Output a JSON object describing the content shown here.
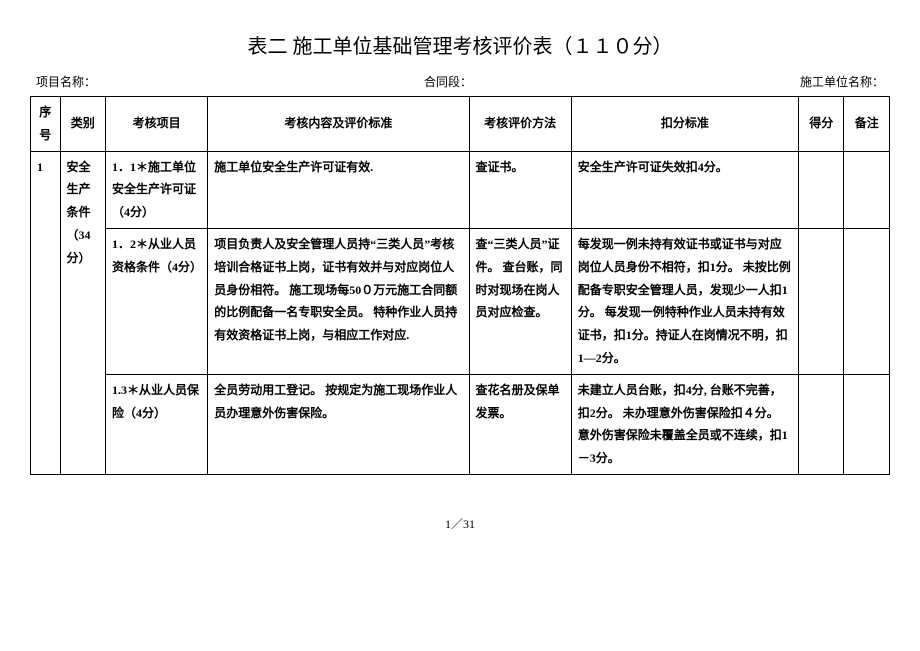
{
  "title": "表二 施工单位基础管理考核评价表（１１０分）",
  "meta": {
    "project_label": "项目名称：",
    "section_label": "合同段：",
    "unit_label": "施工单位名称："
  },
  "columns": {
    "seq": "序号",
    "cat": "类别",
    "item": "考核项目",
    "std": "考核内容及评价标准",
    "method": "考核评价方法",
    "deduct": "扣分标准",
    "score": "得分",
    "note": "备注"
  },
  "rows": [
    {
      "seq": "1",
      "cat": "安全生产条件（34分）",
      "item": "1．1＊施工单位安全生产许可证（4分）",
      "std": "施工单位安全生产许可证有效.",
      "method": "查证书。",
      "deduct": "安全生产许可证失效扣4分。",
      "score": "",
      "note": ""
    },
    {
      "item": "1．2＊从业人员资格条件（4分）",
      "std": "项目负责人及安全管理人员持“三类人员”考核培训合格证书上岗，证书有效并与对应岗位人员身份相符。\n施工现场每50０万元施工合同额的比例配备一名专职安全员。\n特种作业人员持有效资格证书上岗，与相应工作对应.",
      "method": "查“三类人员”证件。\n查台账，同时对现场在岗人员对应检查。",
      "deduct": "每发现一例未持有效证书或证书与对应岗位人员身份不相符，扣1分。\n未按比例配备专职安全管理人员，发现少一人扣1分。\n每发现一例特种作业人员未持有效证书，扣1分。持证人在岗情况不明，扣1—2分。",
      "score": "",
      "note": ""
    },
    {
      "item": "1.3＊从业人员保险（4分）",
      "std": "全员劳动用工登记。\n按规定为施工现场作业人员办理意外伤害保险。",
      "method": "查花名册及保单发票。",
      "deduct": "未建立人员台账，扣4分, 台账不完善，扣2分。\n未办理意外伤害保险扣４分。\n意外伤害保险未覆盖全员或不连续，扣1－3分。",
      "score": "",
      "note": ""
    }
  ],
  "page": "1／31"
}
